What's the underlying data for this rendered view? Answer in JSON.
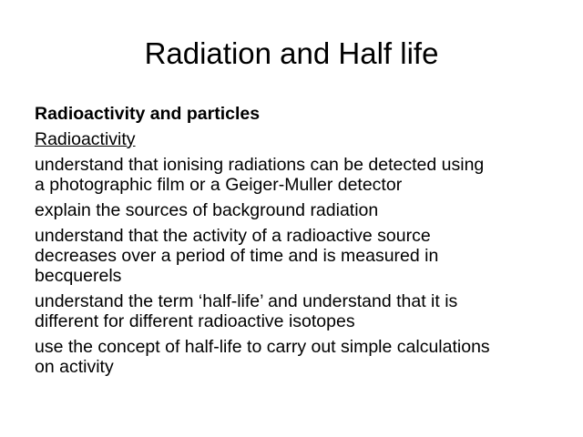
{
  "slide": {
    "title": "Radiation and Half life",
    "heading": "Radioactivity and particles",
    "subheading": "Radioactivity",
    "items": [
      {
        "lines": [
          "understand that ionising radiations can be detected using",
          "a photographic film or a Geiger-Muller detector"
        ]
      },
      {
        "lines": [
          "explain the sources of background radiation"
        ]
      },
      {
        "lines": [
          "understand that the activity of a radioactive source",
          "decreases over a period of time and is measured in",
          "becquerels"
        ]
      },
      {
        "lines": [
          "understand the term ‘half-life’ and understand that it is",
          "different for different radioactive isotopes"
        ]
      },
      {
        "lines": [
          "use the concept of half-life to carry out simple calculations",
          "on activity"
        ]
      }
    ]
  }
}
